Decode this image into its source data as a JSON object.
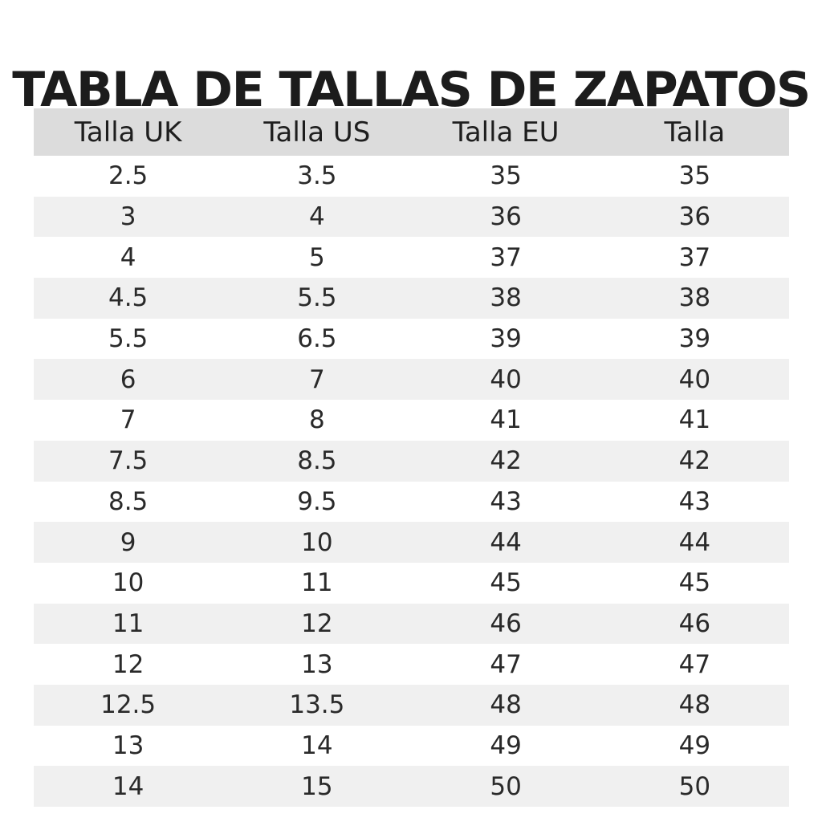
{
  "title": "TABLA DE TALLAS DE ZAPATOS",
  "table": {
    "headers": [
      "Talla UK",
      "Talla US",
      "Talla EU",
      "Talla"
    ],
    "rows": [
      [
        "2.5",
        "3.5",
        "35",
        "35"
      ],
      [
        "3",
        "4",
        "36",
        "36"
      ],
      [
        "4",
        "5",
        "37",
        "37"
      ],
      [
        "4.5",
        "5.5",
        "38",
        "38"
      ],
      [
        "5.5",
        "6.5",
        "39",
        "39"
      ],
      [
        "6",
        "7",
        "40",
        "40"
      ],
      [
        "7",
        "8",
        "41",
        "41"
      ],
      [
        "7.5",
        "8.5",
        "42",
        "42"
      ],
      [
        "8.5",
        "9.5",
        "43",
        "43"
      ],
      [
        "9",
        "10",
        "44",
        "44"
      ],
      [
        "10",
        "11",
        "45",
        "45"
      ],
      [
        "11",
        "12",
        "46",
        "46"
      ],
      [
        "12",
        "13",
        "47",
        "47"
      ],
      [
        "12.5",
        "13.5",
        "48",
        "48"
      ],
      [
        "13",
        "14",
        "49",
        "49"
      ],
      [
        "14",
        "15",
        "50",
        "50"
      ]
    ]
  },
  "colors": {
    "header_background": "#dcdcdc",
    "stripe_background": "#f0f0f0",
    "text": "#222222"
  }
}
